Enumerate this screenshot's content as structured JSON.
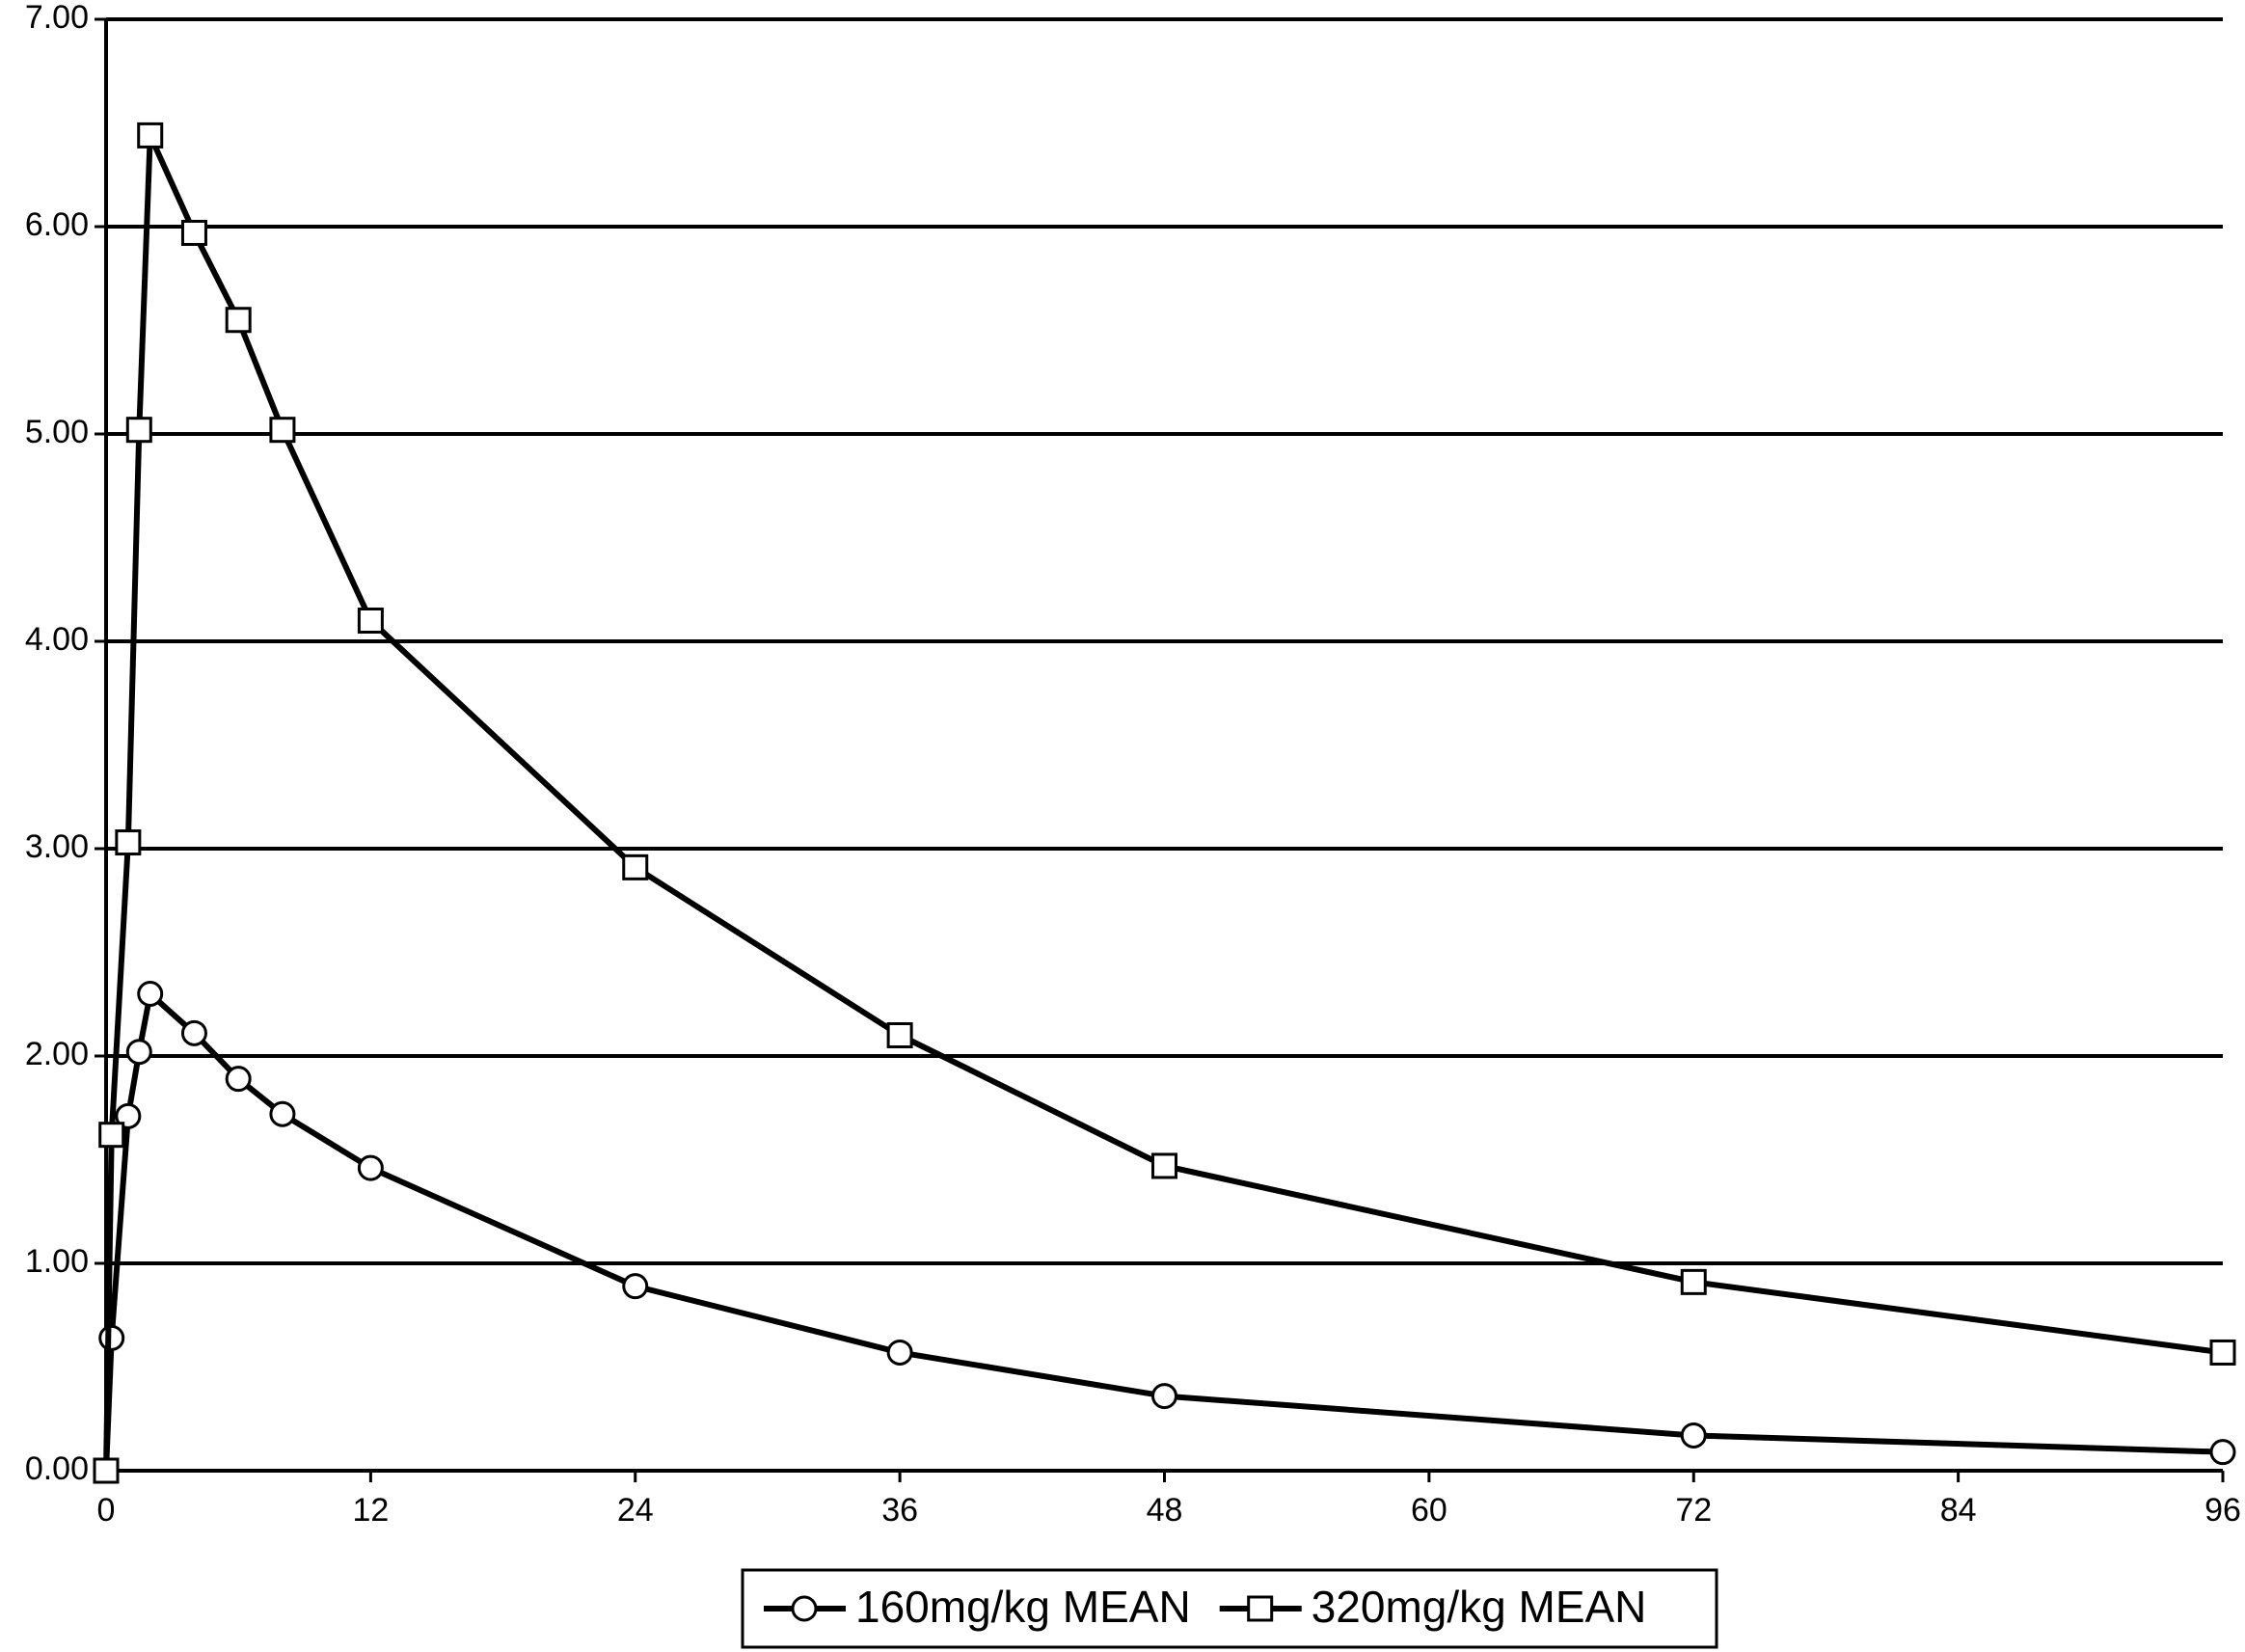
{
  "chart_data": {
    "type": "line",
    "title": "",
    "xlabel": "",
    "ylabel": "",
    "xlim": [
      0,
      96
    ],
    "ylim": [
      0,
      7
    ],
    "xticks": [
      "0",
      "12",
      "24",
      "36",
      "48",
      "60",
      "72",
      "84",
      "96"
    ],
    "yticks": [
      "0.00",
      "1.00",
      "2.00",
      "3.00",
      "4.00",
      "5.00",
      "6.00",
      "7.00"
    ],
    "grid": true,
    "legend_position": "bottom",
    "series": [
      {
        "name": "160mg/kg MEAN",
        "marker": "circle",
        "x": [
          0,
          0.25,
          1,
          1.5,
          2,
          4,
          6,
          8,
          12,
          24,
          36,
          48,
          72,
          96
        ],
        "y": [
          0.0,
          0.64,
          1.71,
          2.02,
          2.3,
          2.11,
          1.89,
          1.72,
          1.46,
          0.89,
          0.57,
          0.36,
          0.17,
          0.09
        ]
      },
      {
        "name": "320mg/kg MEAN",
        "marker": "square",
        "x": [
          0,
          0.25,
          1,
          1.5,
          2,
          4,
          6,
          8,
          12,
          24,
          36,
          48,
          72,
          96
        ],
        "y": [
          0.0,
          1.62,
          3.03,
          5.02,
          6.44,
          5.97,
          5.55,
          5.02,
          4.1,
          2.91,
          2.1,
          1.47,
          0.91,
          0.57
        ]
      }
    ]
  }
}
